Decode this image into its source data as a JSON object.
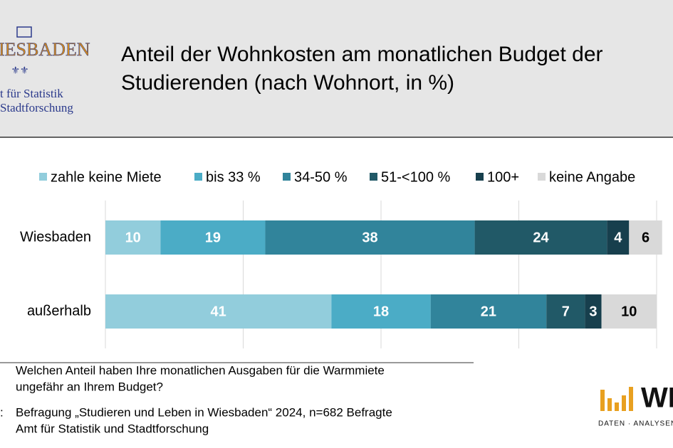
{
  "header": {
    "logo_city": "IESBADEN",
    "logo_line1": "t für Statistik",
    "logo_line2": "Stadtforschung",
    "title_lines": [
      "Anteil der Wohnkosten am monatlichen Budget der",
      "Studierenden (nach Wohnort, in %)"
    ]
  },
  "chart_data": {
    "type": "stacked-bar-horizontal",
    "categories": [
      "Wiesbaden",
      "außerhalb"
    ],
    "series": [
      {
        "name": "zahle keine Miete",
        "color": "#92cddc",
        "values": [
          10,
          41
        ]
      },
      {
        "name": "bis 33 %",
        "color": "#4bacc6",
        "values": [
          19,
          18
        ]
      },
      {
        "name": "34-50 %",
        "color": "#31849b",
        "values": [
          38,
          21
        ]
      },
      {
        "name": "51-<100 %",
        "color": "#215967",
        "values": [
          24,
          7
        ]
      },
      {
        "name": "100+",
        "color": "#173f4d",
        "values": [
          4,
          3
        ]
      },
      {
        "name": "keine Angabe",
        "color": "#d9d9d9",
        "values": [
          6,
          10
        ]
      }
    ],
    "xlim": [
      0,
      100
    ],
    "legend": "top"
  },
  "footer": {
    "question_lines": [
      "Welchen Anteil haben Ihre monatlichen Ausgaben für die Warmmiete",
      "ungefähr an Ihrem Budget?"
    ],
    "source_label": ":",
    "source_lines": [
      "Befragung „Studieren und Leben in Wiesbaden“ 2024, n=682 Befragte",
      "Amt für Statistik und Stadtforschung"
    ],
    "brand": "WI",
    "brand_tagline": "DATEN · ANALYSEN ·"
  }
}
